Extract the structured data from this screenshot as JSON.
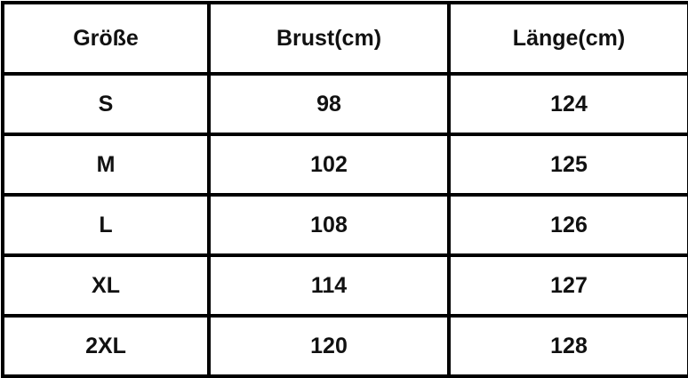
{
  "headers": [
    "Größe",
    "Brust(cm)",
    "Länge(cm)"
  ],
  "rows": [
    [
      "S",
      "98",
      "124"
    ],
    [
      "M",
      "102",
      "125"
    ],
    [
      "L",
      "108",
      "126"
    ],
    [
      "XL",
      "114",
      "127"
    ],
    [
      "2XL",
      "120",
      "128"
    ]
  ]
}
